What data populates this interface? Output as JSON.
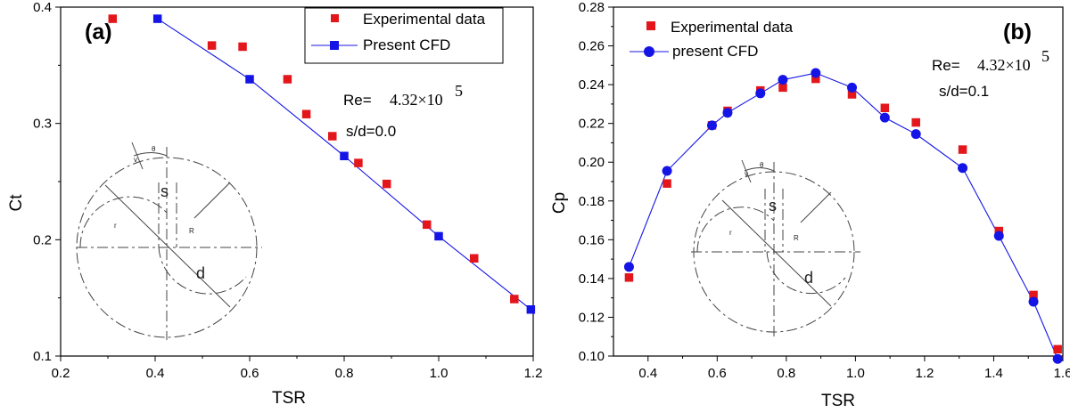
{
  "chart_data": [
    {
      "panel_label": "(a)",
      "type": "scatter",
      "xlabel": "TSR",
      "ylabel": "Ct",
      "xlim": [
        0.2,
        1.2
      ],
      "ylim": [
        0.1,
        0.4
      ],
      "xticks": [
        "0.2",
        "0.4",
        "0.6",
        "0.8",
        "1.0",
        "1.2"
      ],
      "yticks": [
        "0.1",
        "0.2",
        "0.3",
        "0.4"
      ],
      "legend": [
        "Experimental data",
        "Present CFD"
      ],
      "re_label": "Re=",
      "re_value": "4.32×10",
      "re_exp": "5",
      "sd_label": "s/d=0.0",
      "inset_labels": {
        "s": "s",
        "d": "d",
        "r": "r",
        "R": "R",
        "theta": "θ",
        "v": "v"
      },
      "series": [
        {
          "name": "Experimental data",
          "marker": "square",
          "color": "#e3171b",
          "line": false,
          "x": [
            0.31,
            0.52,
            0.585,
            0.68,
            0.72,
            0.775,
            0.83,
            0.89,
            0.975,
            1.075,
            1.16
          ],
          "y": [
            0.39,
            0.367,
            0.366,
            0.338,
            0.308,
            0.289,
            0.266,
            0.248,
            0.213,
            0.184,
            0.149
          ]
        },
        {
          "name": "Present CFD",
          "marker": "square",
          "color": "#1414e6",
          "line": true,
          "x": [
            0.405,
            0.6,
            0.8,
            1.0,
            1.195
          ],
          "y": [
            0.39,
            0.338,
            0.272,
            0.203,
            0.14
          ]
        }
      ]
    },
    {
      "panel_label": "(b)",
      "type": "scatter",
      "xlabel": "TSR",
      "ylabel": "Cp",
      "xlim": [
        0.3,
        1.6
      ],
      "ylim": [
        0.1,
        0.28
      ],
      "xticks": [
        "0.4",
        "0.6",
        "0.8",
        "1.0",
        "1.2",
        "1.4",
        "1.6"
      ],
      "yticks": [
        "0.10",
        "0.12",
        "0.14",
        "0.16",
        "0.18",
        "0.20",
        "0.22",
        "0.24",
        "0.26",
        "0.28"
      ],
      "legend": [
        "Experimental data",
        "present CFD"
      ],
      "re_label": "Re=",
      "re_value": "4.32×10",
      "re_exp": "5",
      "sd_label": "s/d=0.1",
      "inset_labels": {
        "s": "s",
        "d": "d",
        "r": "r",
        "R": "R",
        "theta": "θ",
        "v": "v"
      },
      "series": [
        {
          "name": "Experimental data",
          "marker": "square",
          "color": "#e3171b",
          "line": false,
          "x": [
            0.345,
            0.455,
            0.585,
            0.63,
            0.725,
            0.79,
            0.885,
            0.99,
            1.085,
            1.175,
            1.31,
            1.415,
            1.515,
            1.585
          ],
          "y": [
            0.1405,
            0.189,
            0.219,
            0.2265,
            0.237,
            0.2385,
            0.243,
            0.235,
            0.228,
            0.2205,
            0.2065,
            0.1645,
            0.1315,
            0.1035
          ]
        },
        {
          "name": "present CFD",
          "marker": "circle",
          "color": "#1414e6",
          "line": true,
          "x": [
            0.345,
            0.455,
            0.585,
            0.63,
            0.725,
            0.79,
            0.885,
            0.99,
            1.085,
            1.175,
            1.31,
            1.415,
            1.515,
            1.585
          ],
          "y": [
            0.146,
            0.1955,
            0.219,
            0.2255,
            0.2355,
            0.2425,
            0.246,
            0.2385,
            0.223,
            0.2145,
            0.197,
            0.162,
            0.128,
            0.0985
          ]
        }
      ]
    }
  ]
}
